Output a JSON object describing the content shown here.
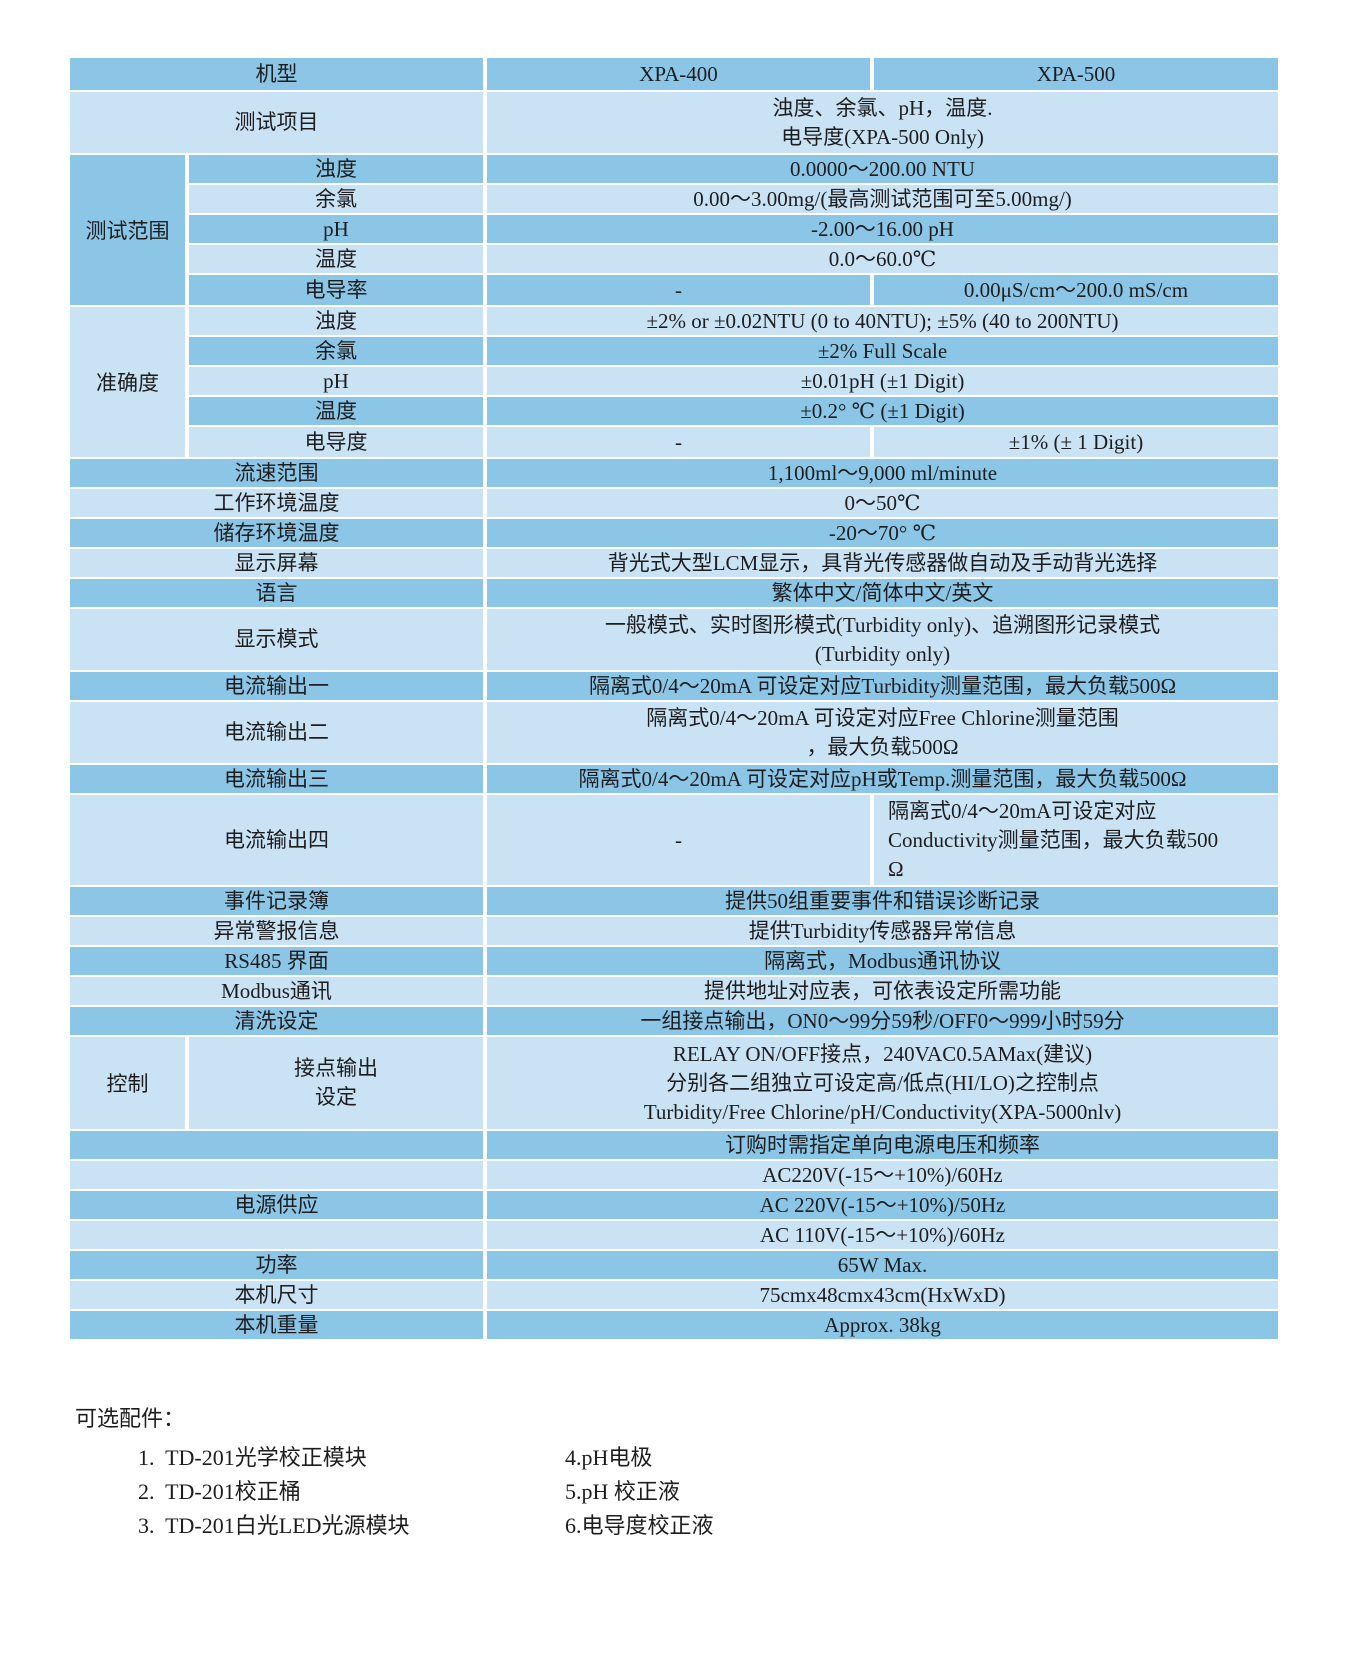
{
  "colors": {
    "row_dark": "#8CC6E6",
    "row_light": "#C9E2F4",
    "divider": "#FFFFFF",
    "text": "#1D1D1F"
  },
  "table": {
    "header": {
      "model_label": "机型",
      "model_a": "XPA-400",
      "model_b": "XPA-500"
    },
    "test_items": {
      "label": "测试项目",
      "lines": [
        "浊度、余氯、pH，温度.",
        "电导度(XPA-500 Only)"
      ]
    },
    "range_group": {
      "label": "测试范围",
      "rows": [
        {
          "label": "浊度",
          "value": "0.0000～200.00 NTU"
        },
        {
          "label": "余氯",
          "value": "0.00～3.00mg/(最高测试范围可至5.00mg/)"
        },
        {
          "label": "pH",
          "value": "-2.00～16.00 pH"
        },
        {
          "label": "温度",
          "value": "0.0～60.0℃"
        },
        {
          "label": "电导率",
          "xpa400": "-",
          "xpa500": "0.00μS/cm～200.0 mS/cm"
        }
      ]
    },
    "accuracy_group": {
      "label": "准确度",
      "rows": [
        {
          "label": "浊度",
          "value": "±2% or ±0.02NTU (0 to 40NTU); ±5% (40 to 200NTU)"
        },
        {
          "label": "余氯",
          "value": "±2% Full Scale"
        },
        {
          "label": "pH",
          "value": "±0.01pH (±1 Digit)"
        },
        {
          "label": "温度",
          "value": "±0.2° ℃ (±1 Digit)"
        },
        {
          "label": "电导度",
          "xpa400": "-",
          "xpa500": "±1% (± 1 Digit)"
        }
      ]
    },
    "rows_mid1": [
      {
        "label": "流速范围",
        "value": "1,100ml～9,000 ml/minute"
      },
      {
        "label": "工作环境温度",
        "value": "0～50℃"
      },
      {
        "label": "储存环境温度",
        "value": "-20～70° ℃"
      },
      {
        "label": "显示屏幕",
        "value": "背光式大型LCM显示，具背光传感器做自动及手动背光选择"
      },
      {
        "label": "语言",
        "value": "繁体中文/简体中文/英文"
      }
    ],
    "display_mode": {
      "label": "显示模式",
      "lines": [
        "一般模式、实时图形模式(Turbidity only)、追溯图形记录模式",
        "(Turbidity only)"
      ]
    },
    "current_out1": {
      "label": "电流输出一",
      "value": "隔离式0/4～20mA 可设定对应Turbidity测量范围，最大负载500Ω"
    },
    "current_out2": {
      "label": "电流输出二",
      "lines": [
        "隔离式0/4～20mA 可设定对应Free Chlorine测量范围",
        "，最大负载500Ω"
      ]
    },
    "current_out3": {
      "label": "电流输出三",
      "value": "隔离式0/4～20mA 可设定对应pH或Temp.测量范围，最大负载500Ω"
    },
    "current_out4": {
      "label": "电流输出四",
      "xpa400": "-",
      "xpa500_lines": [
        "隔离式0/4～20mA可设定对应",
        "Conductivity测量范围，最大负载500",
        "Ω"
      ]
    },
    "rows_mid2": [
      {
        "label": "事件记录簿",
        "value": "提供50组重要事件和错误诊断记录"
      },
      {
        "label": "异常警报信息",
        "value": "提供Turbidity传感器异常信息"
      },
      {
        "label": "RS485 界面",
        "value": "隔离式，Modbus通讯协议"
      },
      {
        "label": "Modbus通讯",
        "value": "提供地址对应表，可依表设定所需功能"
      },
      {
        "label": "清洗设定",
        "value": "一组接点输出，ON0～99分59秒/OFF0～999小时59分"
      }
    ],
    "control_group": {
      "label": "控制",
      "sub_label_lines": [
        "接点输出",
        "设定"
      ],
      "lines": [
        "RELAY ON/OFF接点，240VAC0.5AMax(建议)",
        "分别各二组独立可设定高/低点(HI/LO)之控制点",
        "Turbidity/Free Chlorine/pH/Conductivity(XPA-5000nlv)"
      ]
    },
    "power_rows": [
      {
        "label": "",
        "value": "订购时需指定单向电源电压和频率"
      },
      {
        "label": "",
        "value": "AC220V(-15～+10%)/60Hz"
      },
      {
        "label": "电源供应",
        "value": "AC 220V(-15～+10%)/50Hz"
      },
      {
        "label": "",
        "value": "AC 110V(-15～+10%)/60Hz"
      }
    ],
    "rows_bottom": [
      {
        "label": "功率",
        "value": "65W Max."
      },
      {
        "label": "本机尺寸",
        "value": "75cmx48cmx43cm(HxWxD)"
      },
      {
        "label": "本机重量",
        "value": "Approx. 38kg"
      }
    ]
  },
  "accessories": {
    "title": "可选配件：",
    "left_items": [
      "1.  TD-201光学校正模块",
      "2.  TD-201校正桶",
      "3.  TD-201白光LED光源模块"
    ],
    "right_items": [
      "4.pH电极",
      "5.pH 校正液",
      "6.电导度校正液"
    ]
  }
}
